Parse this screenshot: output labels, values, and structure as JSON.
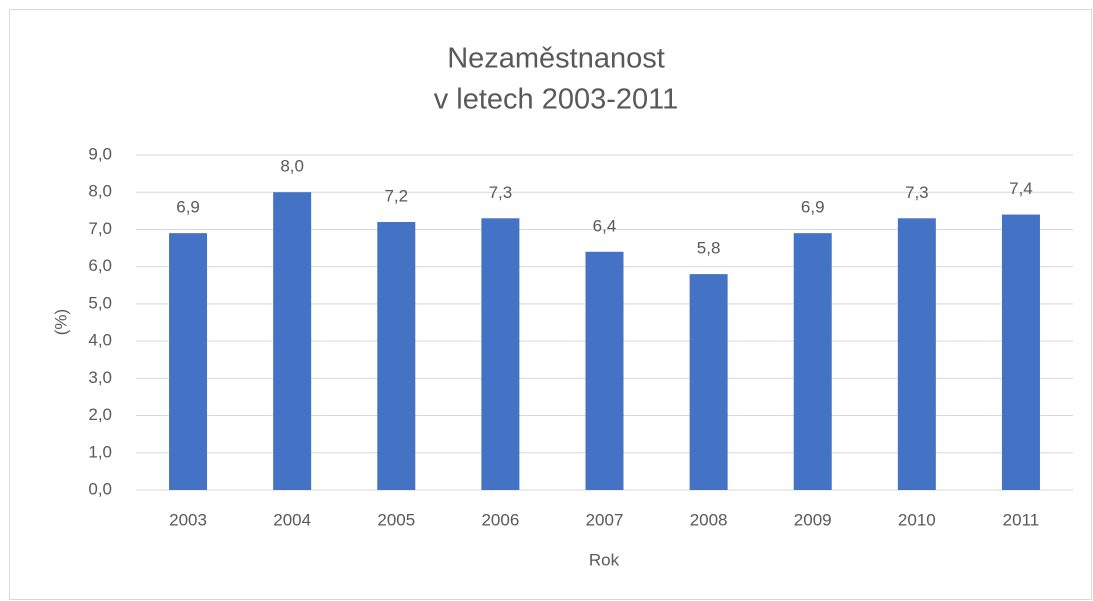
{
  "chart_data": {
    "type": "bar",
    "title": [
      "Nezaměstnanost",
      "v letech 2003-2011"
    ],
    "x_label": "Rok",
    "y_label": "(%)",
    "categories": [
      "2003",
      "2004",
      "2005",
      "2006",
      "2007",
      "2008",
      "2009",
      "2010",
      "2011"
    ],
    "values": [
      6.9,
      8.0,
      7.2,
      7.3,
      6.4,
      5.8,
      6.9,
      7.3,
      7.4
    ],
    "value_labels": [
      "6,9",
      "8,0",
      "7,2",
      "7,3",
      "6,4",
      "5,8",
      "6,9",
      "7,3",
      "7,4"
    ],
    "color": "#4472c4",
    "ylim": [
      0,
      9
    ],
    "yticks": [
      {
        "value": 0,
        "label": "0,0"
      },
      {
        "value": 1,
        "label": "1,0"
      },
      {
        "value": 2,
        "label": "2,0"
      },
      {
        "value": 3,
        "label": "3,0"
      },
      {
        "value": 4,
        "label": "4,0"
      },
      {
        "value": 5,
        "label": "5,0"
      },
      {
        "value": 6,
        "label": "6,0"
      },
      {
        "value": 7,
        "label": "7,0"
      },
      {
        "value": 8,
        "label": "8,0"
      },
      {
        "value": 9,
        "label": "9,0"
      }
    ],
    "grid": true
  }
}
